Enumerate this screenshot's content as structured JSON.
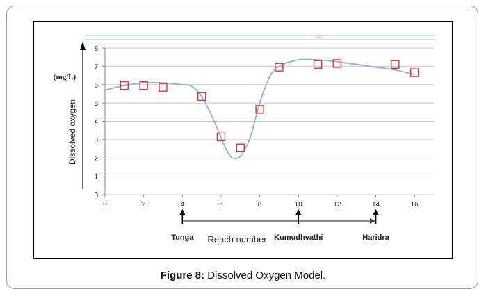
{
  "caption": {
    "label": "Figure 8:",
    "text": "Dissolved Oxygen Model."
  },
  "header_dots": "....",
  "chart_data": {
    "type": "scatter",
    "ylabel": "Dissolved oxygen",
    "yunit": "(mg/L)",
    "xlabel": "Reach number",
    "xlim": [
      0,
      17
    ],
    "ylim": [
      0,
      8
    ],
    "xticks": [
      0,
      2,
      4,
      6,
      8,
      10,
      12,
      14,
      16
    ],
    "yticks": [
      0,
      1,
      2,
      3,
      4,
      5,
      6,
      7,
      8
    ],
    "grid": true,
    "observed": {
      "marker": "open-square",
      "color": "#e03030",
      "x": [
        1,
        2,
        3,
        5,
        6,
        7,
        8,
        9,
        11,
        12,
        15,
        16
      ],
      "y": [
        5.95,
        5.95,
        5.85,
        5.35,
        3.15,
        2.55,
        4.65,
        6.95,
        7.1,
        7.15,
        7.1,
        6.65
      ]
    },
    "model": {
      "style": "smooth-line",
      "color": "#8fb3d9",
      "x": [
        0,
        1,
        2,
        3,
        4,
        4.5,
        5,
        5.5,
        6,
        6.3,
        6.6,
        7,
        7.5,
        8,
        8.5,
        9,
        10,
        11,
        12,
        13,
        14,
        15,
        16
      ],
      "y": [
        5.7,
        5.95,
        6.1,
        6.1,
        6.0,
        5.9,
        5.35,
        4.35,
        3.1,
        2.4,
        2.0,
        2.1,
        3.1,
        5.0,
        6.4,
        7.0,
        7.35,
        7.35,
        7.25,
        7.1,
        6.95,
        6.8,
        6.55
      ]
    },
    "annotations": [
      {
        "label": "Tunga",
        "x": 4
      },
      {
        "label": "Kumudhvathi",
        "x": 10
      },
      {
        "label": "Haridra",
        "x": 14
      }
    ]
  }
}
